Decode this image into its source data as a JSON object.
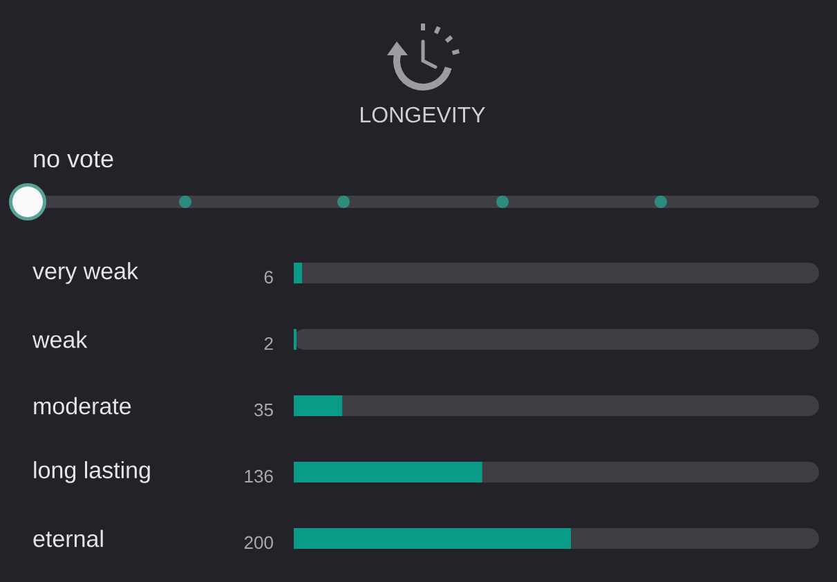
{
  "chart_data": {
    "type": "bar",
    "orientation": "horizontal",
    "title": "LONGEVITY",
    "annotations": [
      "no vote"
    ],
    "categories": [
      "very weak",
      "weak",
      "moderate",
      "long lasting",
      "eternal"
    ],
    "values": [
      6,
      2,
      35,
      136,
      200
    ],
    "value_labels": [
      "6",
      "2",
      "35",
      "136",
      "200"
    ],
    "color": "#0a9a88",
    "xlim": [
      0,
      379
    ],
    "tick_labels": "y"
  }
}
